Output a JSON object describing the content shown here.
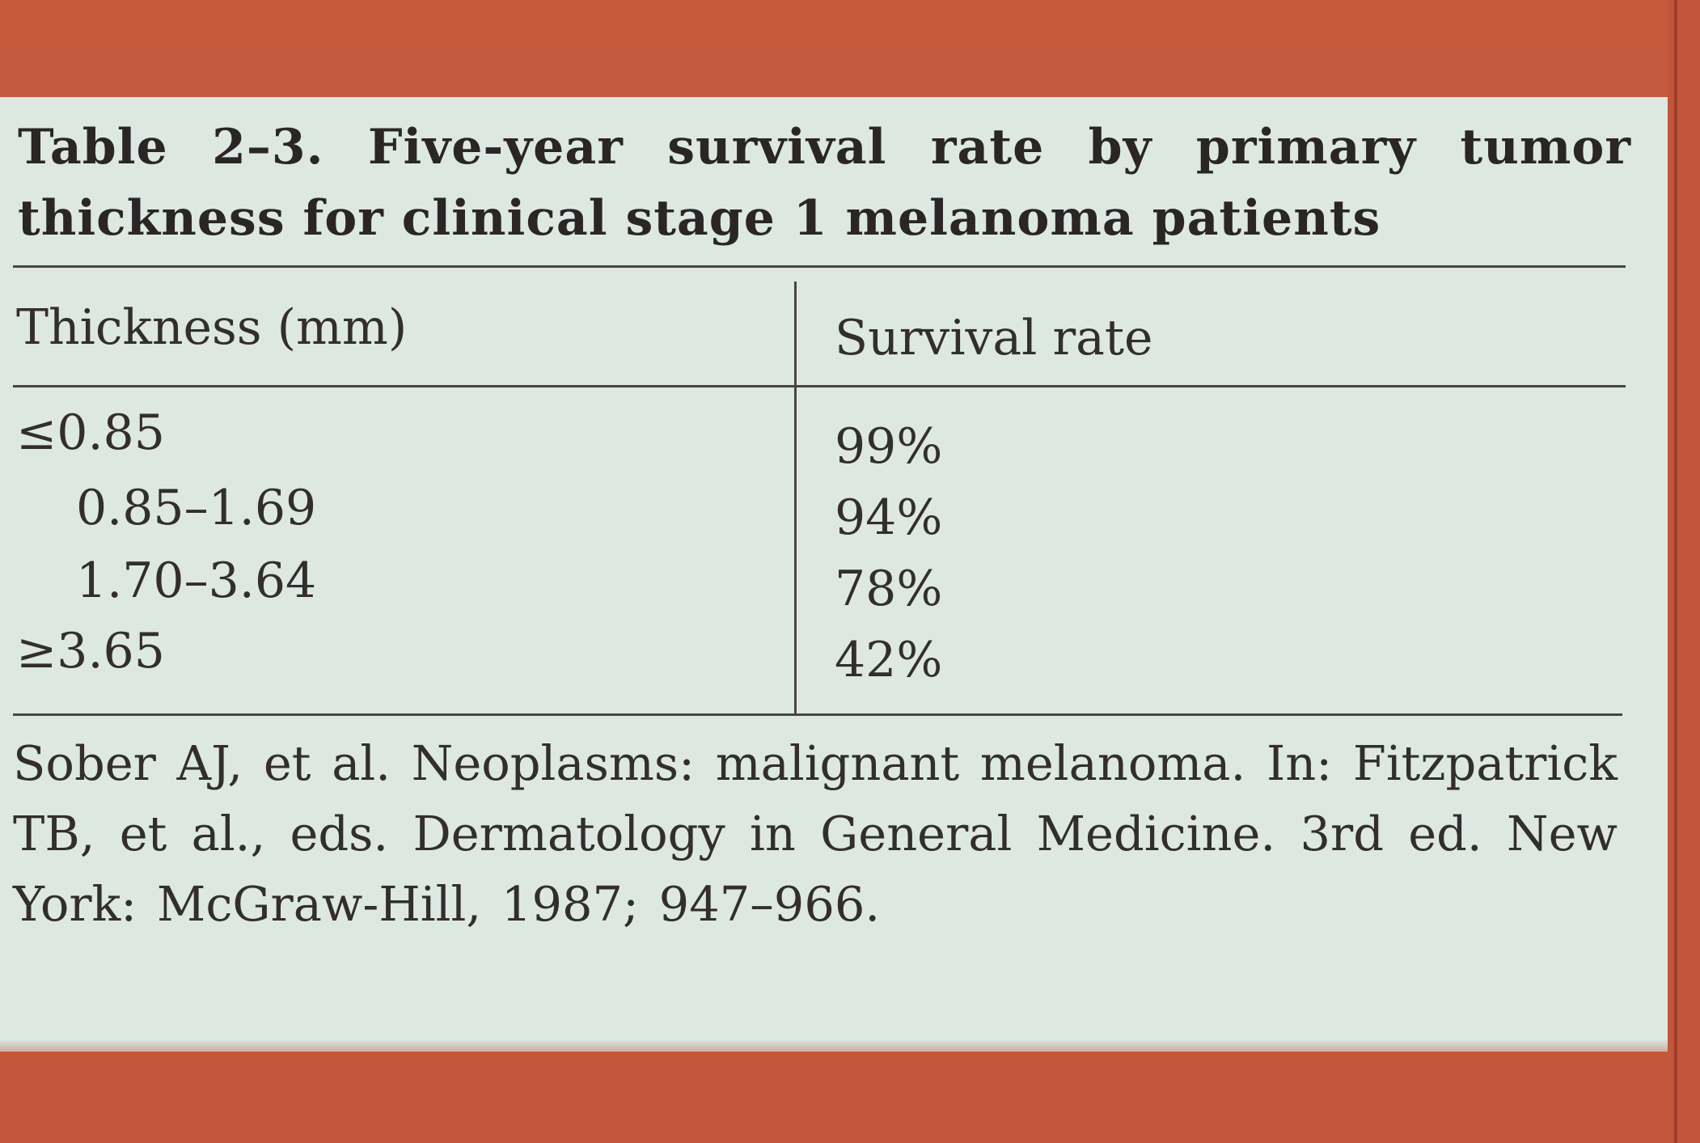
{
  "table": {
    "title": "Table 2–3. Five-year survival rate by primary tumor thickness for clinical stage 1 melanoma patients",
    "headers": [
      "Thickness (mm)",
      "Survival rate"
    ],
    "rows": [
      {
        "thickness": "≤0.85",
        "survival": "99%"
      },
      {
        "thickness": "0.85–1.69",
        "survival": "94%"
      },
      {
        "thickness": "1.70–3.64",
        "survival": "78%"
      },
      {
        "thickness": "≥3.65",
        "survival": "42%"
      }
    ],
    "source": "Sober AJ, et al. Neoplasms: malignant melanoma. In: Fitzpatrick TB, et al., eds. Dermatology in General Medicine. 3rd ed. New York: McGraw-Hill, 1987; 947–966."
  }
}
